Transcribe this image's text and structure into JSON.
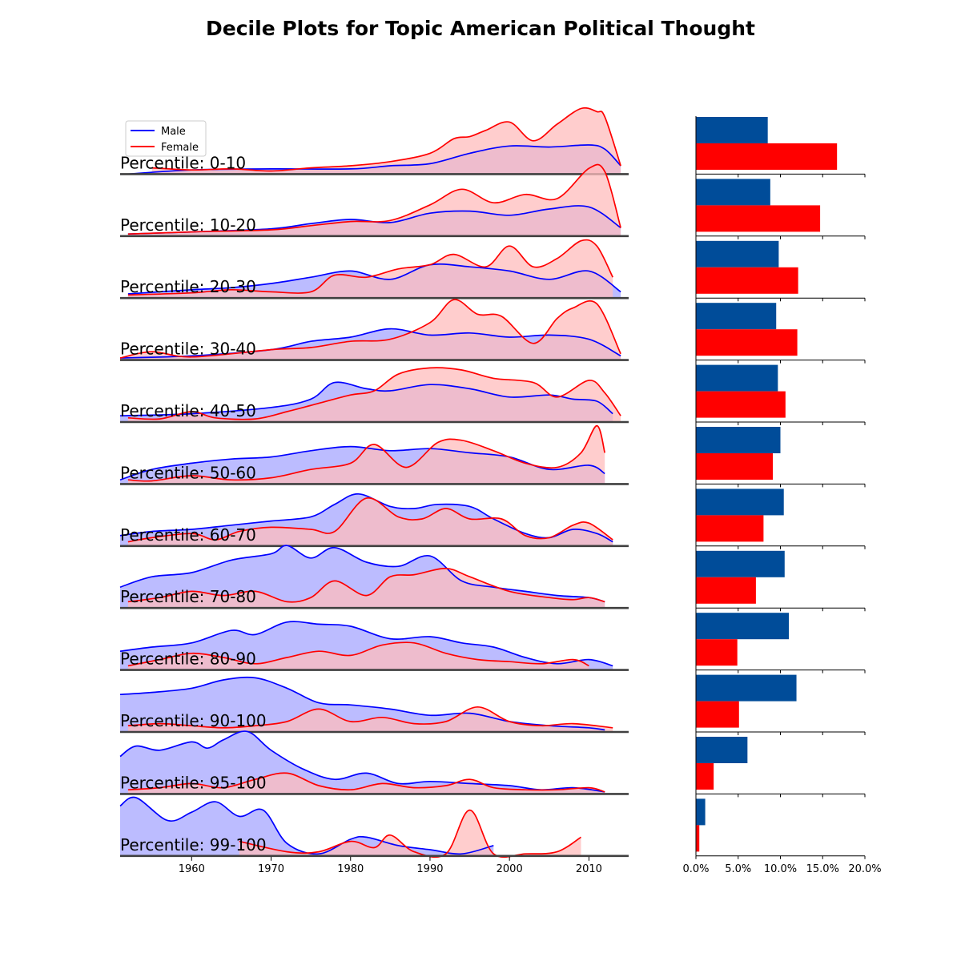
{
  "chart_data": {
    "type": "area",
    "title": "Decile Plots for Topic American Political Thought",
    "legend": {
      "entries": [
        "Male",
        "Female"
      ],
      "placement": "top-left"
    },
    "colors": {
      "male_line": "#0000ff",
      "male_fill": "#bcbcff",
      "female_line": "#ff0000",
      "female_fill": "#ffbcbc",
      "overlap_fill": "#cc8fc2",
      "male_bar": "#004c99",
      "female_bar": "#ff0000",
      "baseline": "#404040"
    },
    "x_axis": {
      "range": [
        1951,
        2015
      ],
      "ticks": [
        1960,
        1970,
        1980,
        1990,
        2000,
        2010
      ]
    },
    "bar_axis": {
      "range": [
        0,
        20
      ],
      "ticks": [
        "0.0%",
        "5.0%",
        "10.0%",
        "15.0%",
        "20.0%"
      ]
    },
    "rows": [
      {
        "label": "Percentile: 0-10",
        "male": {
          "x": [
            1952,
            1960,
            1970,
            1980,
            1985,
            1990,
            1995,
            2000,
            2005,
            2010,
            2012,
            2014
          ],
          "y": [
            0,
            0.04,
            0.05,
            0.05,
            0.08,
            0.1,
            0.2,
            0.27,
            0.26,
            0.28,
            0.24,
            0.08
          ]
        },
        "female": {
          "x": [
            1955,
            1960,
            1965,
            1970,
            1975,
            1980,
            1985,
            1990,
            1993,
            1995,
            1997,
            2000,
            2003,
            2006,
            2009,
            2011,
            2012,
            2014
          ],
          "y": [
            0.06,
            0.04,
            0.05,
            0.03,
            0.06,
            0.08,
            0.12,
            0.2,
            0.34,
            0.36,
            0.42,
            0.5,
            0.32,
            0.48,
            0.63,
            0.6,
            0.55,
            0.08
          ]
        },
        "bar": {
          "male": 8.5,
          "female": 16.7
        }
      },
      {
        "label": "Percentile: 10-20",
        "male": {
          "x": [
            1952,
            1960,
            1970,
            1975,
            1980,
            1985,
            1990,
            1995,
            2000,
            2005,
            2010,
            2014
          ],
          "y": [
            0.02,
            0.04,
            0.07,
            0.12,
            0.16,
            0.13,
            0.22,
            0.24,
            0.2,
            0.26,
            0.28,
            0.08
          ]
        },
        "female": {
          "x": [
            1952,
            1960,
            1970,
            1975,
            1980,
            1985,
            1990,
            1994,
            1998,
            2002,
            2006,
            2010,
            2012,
            2014
          ],
          "y": [
            0.02,
            0.04,
            0.06,
            0.1,
            0.14,
            0.15,
            0.3,
            0.45,
            0.32,
            0.4,
            0.36,
            0.65,
            0.62,
            0.08
          ]
        },
        "bar": {
          "male": 8.8,
          "female": 14.7
        }
      },
      {
        "label": "Percentile: 20-30",
        "male": {
          "x": [
            1952,
            1960,
            1965,
            1970,
            1975,
            1980,
            1985,
            1990,
            1995,
            2000,
            2005,
            2010,
            2014
          ],
          "y": [
            0.04,
            0.08,
            0.1,
            0.14,
            0.2,
            0.26,
            0.18,
            0.32,
            0.3,
            0.26,
            0.18,
            0.26,
            0.06
          ]
        },
        "female": {
          "x": [
            1952,
            1960,
            1965,
            1970,
            1975,
            1978,
            1982,
            1986,
            1990,
            1993,
            1997,
            2000,
            2003,
            2006,
            2009,
            2011,
            2013
          ],
          "y": [
            0.03,
            0.05,
            0.08,
            0.06,
            0.06,
            0.22,
            0.2,
            0.28,
            0.32,
            0.42,
            0.3,
            0.5,
            0.3,
            0.38,
            0.55,
            0.5,
            0.2
          ]
        },
        "bar": {
          "male": 9.8,
          "female": 12.1
        }
      },
      {
        "label": "Percentile: 30-40",
        "male": {
          "x": [
            1951,
            1960,
            1970,
            1975,
            1980,
            1985,
            1990,
            1995,
            2000,
            2005,
            2010,
            2014
          ],
          "y": [
            0.02,
            0.04,
            0.1,
            0.18,
            0.22,
            0.3,
            0.24,
            0.26,
            0.22,
            0.24,
            0.2,
            0.04
          ]
        },
        "female": {
          "x": [
            1951,
            1955,
            1960,
            1970,
            1975,
            1980,
            1985,
            1990,
            1993,
            1996,
            1999,
            2003,
            2006,
            2008,
            2011,
            2014
          ],
          "y": [
            0.02,
            0.08,
            0.03,
            0.1,
            0.12,
            0.18,
            0.2,
            0.36,
            0.58,
            0.44,
            0.42,
            0.16,
            0.4,
            0.5,
            0.54,
            0.06
          ]
        },
        "bar": {
          "male": 9.5,
          "female": 12.0
        }
      },
      {
        "label": "Percentile: 40-50",
        "male": {
          "x": [
            1951,
            1960,
            1970,
            1975,
            1978,
            1982,
            1985,
            1990,
            1995,
            2000,
            2005,
            2008,
            2011,
            2013
          ],
          "y": [
            0.06,
            0.08,
            0.14,
            0.22,
            0.38,
            0.32,
            0.3,
            0.36,
            0.32,
            0.24,
            0.26,
            0.22,
            0.2,
            0.08
          ]
        },
        "female": {
          "x": [
            1952,
            1956,
            1960,
            1963,
            1968,
            1972,
            1976,
            1980,
            1983,
            1986,
            1990,
            1994,
            1998,
            2003,
            2006,
            2010,
            2012,
            2014
          ],
          "y": [
            0.04,
            0.03,
            0.1,
            0.04,
            0.03,
            0.1,
            0.18,
            0.26,
            0.3,
            0.46,
            0.52,
            0.5,
            0.42,
            0.38,
            0.24,
            0.4,
            0.28,
            0.06
          ]
        },
        "bar": {
          "male": 9.7,
          "female": 10.6
        }
      },
      {
        "label": "Percentile: 50-60",
        "male": {
          "x": [
            1951,
            1955,
            1960,
            1965,
            1970,
            1975,
            1980,
            1985,
            1990,
            1995,
            2000,
            2005,
            2010,
            2012
          ],
          "y": [
            0.04,
            0.14,
            0.2,
            0.24,
            0.26,
            0.32,
            0.36,
            0.32,
            0.34,
            0.3,
            0.26,
            0.14,
            0.18,
            0.1
          ]
        },
        "female": {
          "x": [
            1952,
            1955,
            1960,
            1965,
            1970,
            1975,
            1980,
            1983,
            1987,
            1991,
            1994,
            1998,
            2002,
            2006,
            2009,
            2011,
            2012
          ],
          "y": [
            0.04,
            0.03,
            0.08,
            0.04,
            0.06,
            0.14,
            0.2,
            0.38,
            0.16,
            0.4,
            0.42,
            0.32,
            0.2,
            0.16,
            0.3,
            0.56,
            0.3
          ]
        },
        "bar": {
          "male": 10.0,
          "female": 9.1
        }
      },
      {
        "label": "Percentile: 60-70",
        "male": {
          "x": [
            1951,
            1955,
            1960,
            1965,
            1970,
            1975,
            1978,
            1981,
            1985,
            1988,
            1991,
            1995,
            1998,
            2002,
            2005,
            2008,
            2011,
            2013
          ],
          "y": [
            0.1,
            0.14,
            0.16,
            0.2,
            0.24,
            0.28,
            0.4,
            0.5,
            0.38,
            0.36,
            0.4,
            0.38,
            0.26,
            0.12,
            0.08,
            0.16,
            0.12,
            0.04
          ]
        },
        "female": {
          "x": [
            1952,
            1955,
            1960,
            1963,
            1966,
            1970,
            1975,
            1978,
            1982,
            1986,
            1989,
            1992,
            1995,
            1999,
            2002,
            2005,
            2008,
            2010,
            2013
          ],
          "y": [
            0.04,
            0.08,
            0.12,
            0.06,
            0.14,
            0.18,
            0.16,
            0.14,
            0.46,
            0.28,
            0.26,
            0.36,
            0.26,
            0.26,
            0.1,
            0.08,
            0.2,
            0.22,
            0.06
          ]
        },
        "bar": {
          "male": 10.4,
          "female": 8.0
        }
      },
      {
        "label": "Percentile: 70-80",
        "male": {
          "x": [
            1951,
            1955,
            1960,
            1965,
            1970,
            1972,
            1975,
            1978,
            1982,
            1986,
            1990,
            1994,
            1998,
            2002,
            2006,
            2010,
            2012
          ],
          "y": [
            0.2,
            0.3,
            0.34,
            0.46,
            0.52,
            0.6,
            0.48,
            0.58,
            0.44,
            0.4,
            0.5,
            0.26,
            0.2,
            0.16,
            0.12,
            0.1,
            0.06
          ]
        },
        "female": {
          "x": [
            1952,
            1956,
            1960,
            1964,
            1968,
            1972,
            1975,
            1978,
            1982,
            1985,
            1988,
            1992,
            1995,
            2000,
            2005,
            2008,
            2010,
            2012
          ],
          "y": [
            0.06,
            0.1,
            0.16,
            0.12,
            0.16,
            0.06,
            0.1,
            0.26,
            0.12,
            0.3,
            0.32,
            0.38,
            0.3,
            0.16,
            0.1,
            0.08,
            0.1,
            0.06
          ]
        },
        "bar": {
          "male": 10.5,
          "female": 7.1
        }
      },
      {
        "label": "Percentile: 80-90",
        "male": {
          "x": [
            1951,
            1955,
            1960,
            1965,
            1968,
            1972,
            1976,
            1980,
            1985,
            1990,
            1994,
            1998,
            2002,
            2006,
            2010,
            2013
          ],
          "y": [
            0.18,
            0.22,
            0.26,
            0.38,
            0.34,
            0.46,
            0.44,
            0.42,
            0.3,
            0.32,
            0.26,
            0.22,
            0.12,
            0.06,
            0.1,
            0.04
          ]
        },
        "female": {
          "x": [
            1952,
            1956,
            1960,
            1964,
            1968,
            1972,
            1976,
            1980,
            1984,
            1988,
            1992,
            1996,
            2000,
            2004,
            2008,
            2010
          ],
          "y": [
            0.04,
            0.1,
            0.16,
            0.12,
            0.06,
            0.12,
            0.18,
            0.14,
            0.24,
            0.26,
            0.16,
            0.1,
            0.08,
            0.06,
            0.1,
            0.04
          ]
        },
        "bar": {
          "male": 11.0,
          "female": 4.9
        }
      },
      {
        "label": "Percentile: 90-100",
        "male": {
          "x": [
            1951,
            1955,
            1960,
            1964,
            1968,
            1972,
            1976,
            1980,
            1985,
            1990,
            1995,
            2000,
            2005,
            2010,
            2012
          ],
          "y": [
            0.36,
            0.38,
            0.42,
            0.5,
            0.52,
            0.42,
            0.28,
            0.26,
            0.22,
            0.16,
            0.18,
            0.1,
            0.06,
            0.04,
            0.02
          ]
        },
        "female": {
          "x": [
            1952,
            1956,
            1960,
            1964,
            1968,
            1972,
            1976,
            1980,
            1984,
            1988,
            1992,
            1996,
            2000,
            2004,
            2008,
            2013
          ],
          "y": [
            0.06,
            0.08,
            0.06,
            0.04,
            0.06,
            0.1,
            0.22,
            0.1,
            0.14,
            0.08,
            0.1,
            0.24,
            0.1,
            0.06,
            0.08,
            0.04
          ]
        },
        "bar": {
          "male": 11.9,
          "female": 5.1
        }
      },
      {
        "label": "Percentile: 95-100",
        "male": {
          "x": [
            1951,
            1953,
            1956,
            1960,
            1962,
            1964,
            1967,
            1970,
            1974,
            1978,
            1982,
            1986,
            1990,
            1995,
            2000,
            2004,
            2008,
            2012
          ],
          "y": [
            0.36,
            0.46,
            0.42,
            0.5,
            0.44,
            0.52,
            0.6,
            0.42,
            0.24,
            0.14,
            0.2,
            0.1,
            0.12,
            0.1,
            0.08,
            0.04,
            0.06,
            0.02
          ]
        },
        "female": {
          "x": [
            1952,
            1956,
            1960,
            1964,
            1968,
            1972,
            1976,
            1980,
            1984,
            1988,
            1992,
            1995,
            1998,
            2002,
            2006,
            2010,
            2012
          ],
          "y": [
            0.04,
            0.06,
            0.1,
            0.06,
            0.14,
            0.2,
            0.08,
            0.04,
            0.1,
            0.06,
            0.08,
            0.14,
            0.06,
            0.04,
            0.04,
            0.06,
            0.02
          ]
        },
        "bar": {
          "male": 6.1,
          "female": 2.1
        }
      },
      {
        "label": "Percentile: 99-100",
        "male": {
          "x": [
            1951,
            1953,
            1957,
            1960,
            1963,
            1966,
            1969,
            1972,
            1976,
            1980,
            1982,
            1986,
            1990,
            1994,
            1998
          ],
          "y": [
            0.48,
            0.56,
            0.34,
            0.42,
            0.52,
            0.38,
            0.44,
            0.12,
            0.02,
            0.16,
            0.18,
            0.1,
            0.06,
            0.02,
            0.1
          ]
        },
        "female": {
          "x": [
            1966,
            1972,
            1976,
            1980,
            1983,
            1985,
            1988,
            1992,
            1995,
            1998,
            2002,
            2006,
            2009
          ],
          "y": [
            0.14,
            0.04,
            0.04,
            0.14,
            0.08,
            0.2,
            0.04,
            0.02,
            0.44,
            0.02,
            0.02,
            0.04,
            0.18
          ]
        },
        "bar": {
          "male": 1.1,
          "female": 0.4
        }
      }
    ]
  }
}
